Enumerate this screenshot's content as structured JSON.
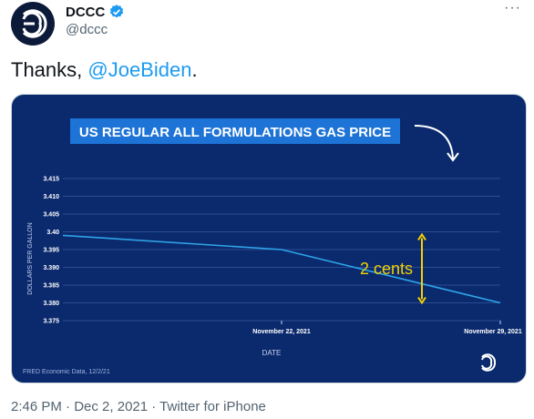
{
  "header": {
    "display_name": "DCCC",
    "handle": "@dccc",
    "more": "···"
  },
  "tweet": {
    "text_prefix": "Thanks, ",
    "mention": "@JoeBiden",
    "text_suffix": "."
  },
  "meta": {
    "time": "2:46 PM",
    "date": "Dec 2, 2021",
    "source": "Twitter for iPhone",
    "separator": " · "
  },
  "colors": {
    "link": "#1d9bf0",
    "chart_bg": "#0b2a6e",
    "line": "#2fa3e6",
    "arrow_annot": "#f5d000"
  },
  "chart_data": {
    "type": "line",
    "title": "US REGULAR ALL FORMULATIONS GAS PRICE",
    "xlabel": "DATE",
    "ylabel": "DOLLARS PER GALLON",
    "x": [
      "2021-11-15",
      "2021-11-22",
      "2021-11-29"
    ],
    "x_tick_labels": [
      "November 22, 2021",
      "November 29, 2021"
    ],
    "x_ticks": [
      "2021-11-22",
      "2021-11-29"
    ],
    "series": [
      {
        "values": [
          3.399,
          3.395,
          3.38
        ]
      }
    ],
    "ylim": [
      3.375,
      3.415
    ],
    "y_ticks": [
      "3.415",
      "3.410",
      "3.405",
      "3.40",
      "3.395",
      "3.390",
      "3.385",
      "3.380",
      "3.375"
    ],
    "grid": true,
    "annotation": "2 cents",
    "source_note": "FRED Economic Data, 12/2/21"
  }
}
